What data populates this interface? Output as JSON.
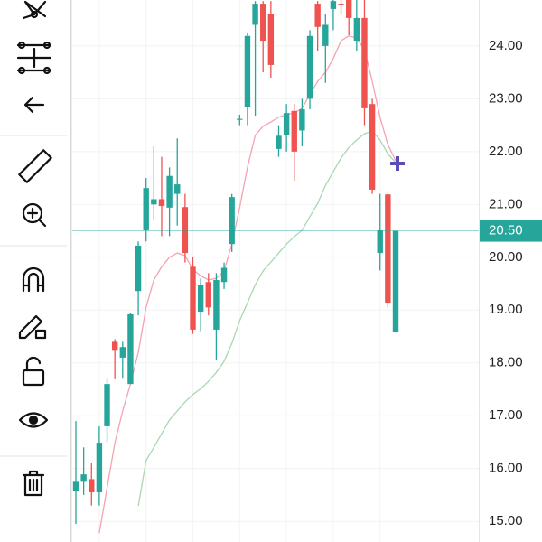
{
  "chart_data": {
    "type": "candlestick",
    "ylim": [
      14.61,
      24.87
    ],
    "yticks": [
      {
        "value": 15,
        "label": "15.00"
      },
      {
        "value": 16,
        "label": "16.00"
      },
      {
        "value": 17,
        "label": "17.00"
      },
      {
        "value": 18,
        "label": "18.00"
      },
      {
        "value": 19,
        "label": "19.00"
      },
      {
        "value": 20,
        "label": "20.00"
      },
      {
        "value": 21,
        "label": "21.00"
      },
      {
        "value": 22,
        "label": "22.00"
      },
      {
        "value": 23,
        "label": "23.00"
      },
      {
        "value": 24,
        "label": "24.00"
      }
    ],
    "up_color": "#26a69a",
    "down_color": "#ef5350",
    "grid": true,
    "open": [
      15.58,
      15.75,
      15.8,
      15.55,
      16.8,
      18.4,
      18.1,
      17.6,
      19.36,
      20.51,
      21.0,
      21.1,
      20.94,
      21.2,
      20.95,
      19.82,
      18.97,
      19.53,
      18.63,
      19.53,
      20.25,
      22.6,
      22.85,
      24.4,
      24.8,
      24.6,
      22.05,
      22.31,
      22.77,
      22.4,
      23.0,
      24.8,
      24.0,
      24.7,
      24.8,
      24.87,
      24.1,
      24.53,
      22.9,
      20.08,
      21.19,
      18.59
    ],
    "high": [
      16.9,
      16.4,
      16.1,
      16.8,
      17.7,
      18.45,
      18.4,
      18.95,
      20.3,
      21.5,
      22.1,
      21.9,
      21.7,
      22.25,
      21.2,
      20.0,
      19.6,
      19.7,
      19.7,
      19.9,
      21.2,
      22.7,
      24.25,
      24.85,
      24.85,
      24.85,
      22.5,
      22.9,
      22.9,
      23.0,
      24.3,
      24.85,
      24.6,
      24.87,
      24.87,
      24.87,
      24.87,
      24.87,
      23.0,
      21.2,
      21.2,
      20.5
    ],
    "low": [
      14.95,
      15.5,
      15.3,
      15.3,
      16.5,
      17.69,
      17.7,
      17.6,
      18.9,
      20.3,
      20.7,
      20.4,
      20.4,
      20.6,
      19.9,
      18.55,
      18.6,
      18.9,
      18.06,
      19.4,
      20.1,
      22.5,
      22.5,
      22.68,
      23.5,
      23.4,
      21.9,
      22.0,
      21.45,
      22.1,
      22.8,
      23.9,
      23.3,
      24.3,
      24.6,
      24.2,
      23.9,
      22.5,
      21.2,
      19.75,
      19.05,
      18.59
    ],
    "close": [
      15.75,
      15.89,
      15.55,
      16.49,
      17.6,
      18.23,
      18.3,
      18.92,
      20.22,
      21.31,
      21.1,
      20.97,
      21.54,
      21.38,
      20.08,
      18.63,
      19.48,
      19.05,
      19.57,
      19.8,
      21.14,
      22.62,
      24.19,
      24.8,
      24.1,
      23.64,
      22.3,
      22.73,
      22.0,
      22.8,
      24.19,
      24.36,
      24.4,
      24.85,
      24.78,
      24.53,
      24.53,
      22.82,
      21.28,
      20.51,
      19.14,
      20.5
    ],
    "moving_averages": [
      {
        "color": "#f4a3b1",
        "values": [
          null,
          null,
          null,
          14.78,
          15.63,
          16.49,
          17.09,
          17.6,
          18.2,
          19.05,
          19.57,
          19.82,
          20.0,
          20.08,
          20.03,
          19.77,
          19.65,
          19.57,
          19.6,
          19.74,
          20.25,
          20.94,
          21.71,
          22.31,
          22.48,
          22.56,
          22.65,
          22.7,
          22.73,
          22.82,
          23.08,
          23.33,
          23.5,
          23.76,
          24.1,
          24.19,
          24.15,
          23.93,
          23.33,
          22.65,
          22.13,
          21.83
        ]
      },
      {
        "color": "#a8d8b0",
        "values": [
          null,
          null,
          null,
          null,
          null,
          null,
          null,
          null,
          15.29,
          16.15,
          16.4,
          16.66,
          16.92,
          17.09,
          17.26,
          17.4,
          17.51,
          17.65,
          17.82,
          18.03,
          18.37,
          18.8,
          19.14,
          19.48,
          19.74,
          19.91,
          20.08,
          20.25,
          20.39,
          20.51,
          20.77,
          21.02,
          21.36,
          21.62,
          21.88,
          22.08,
          22.22,
          22.34,
          22.39,
          22.22,
          21.96,
          21.79
        ]
      }
    ],
    "last_price": {
      "value": 20.5,
      "label": "20.50"
    },
    "last_price_color": "#26a69a"
  }
}
